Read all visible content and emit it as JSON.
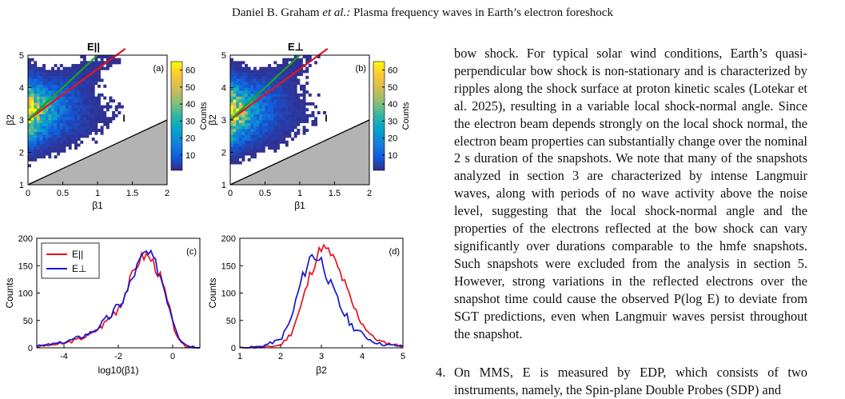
{
  "header": {
    "authors": "Daniel B. Graham",
    "etal": "et al.:",
    "title": "Plasma frequency waves in Earth’s electron foreshock"
  },
  "figure": {
    "colors": {
      "red": "#e8131b",
      "blue": "#1515d6",
      "green": "#1aa51a",
      "shade": "#b3b3b3"
    },
    "panel_a": {
      "label": "(a)",
      "title": "E||",
      "xlabel": "β1",
      "ylabel": "β2",
      "xticks": [
        "0",
        "0.5",
        "1",
        "1.5",
        "2"
      ],
      "yticks": [
        "1",
        "2",
        "3",
        "4",
        "5"
      ],
      "marker": "I"
    },
    "panel_b": {
      "label": "(b)",
      "title": "E⊥",
      "xlabel": "β1",
      "ylabel": "β2",
      "xticks": [
        "0",
        "0.5",
        "1",
        "1.5",
        "2"
      ],
      "yticks": [
        "1",
        "2",
        "3",
        "4",
        "5"
      ],
      "marker": "I"
    },
    "colorbar": {
      "label": "Counts",
      "ticks": [
        "10",
        "20",
        "30",
        "40",
        "50",
        "60"
      ]
    },
    "panel_c": {
      "label": "(c)",
      "xlabel": "log10(β1)",
      "ylabel": "Counts",
      "xticks": [
        "-4",
        "-2",
        "0"
      ],
      "yticks": [
        "0",
        "50",
        "100",
        "150",
        "200"
      ],
      "legend": [
        "E||",
        "E⊥"
      ]
    },
    "panel_d": {
      "label": "(d)",
      "xlabel": "β2",
      "ylabel": "Counts",
      "xticks": [
        "1",
        "2",
        "3",
        "4",
        "5"
      ],
      "yticks": [
        "0",
        "50",
        "100",
        "150",
        "200"
      ]
    }
  },
  "chart_data": [
    {
      "type": "heatmap",
      "panel": "(a)",
      "title": "E||",
      "xlabel": "β1",
      "ylabel": "β2",
      "xlim": [
        0,
        2
      ],
      "ylim": [
        1,
        5
      ],
      "colorbar": {
        "label": "Counts",
        "range": [
          1,
          65
        ]
      },
      "lines": [
        {
          "color": "red",
          "x": [
            0,
            1.4
          ],
          "y": [
            3.0,
            5.2
          ]
        },
        {
          "color": "green",
          "x": [
            0,
            1.0
          ],
          "y": [
            3.0,
            5.0
          ]
        },
        {
          "color": "black",
          "x": [
            0,
            2
          ],
          "y": [
            1.0,
            3.0
          ]
        }
      ]
    },
    {
      "type": "heatmap",
      "panel": "(b)",
      "title": "E⊥",
      "xlabel": "β1",
      "ylabel": "β2",
      "xlim": [
        0,
        2
      ],
      "ylim": [
        1,
        5
      ],
      "colorbar": {
        "label": "Counts",
        "range": [
          1,
          65
        ]
      },
      "lines": [
        {
          "color": "red",
          "x": [
            0,
            1.4
          ],
          "y": [
            3.0,
            5.2
          ]
        },
        {
          "color": "green",
          "x": [
            0,
            1.0
          ],
          "y": [
            3.0,
            5.0
          ]
        },
        {
          "color": "black",
          "x": [
            0,
            2
          ],
          "y": [
            1.0,
            3.0
          ]
        }
      ]
    },
    {
      "type": "line",
      "panel": "(c)",
      "xlabel": "log10(β1)",
      "ylabel": "Counts",
      "xlim": [
        -5,
        1
      ],
      "ylim": [
        0,
        200
      ],
      "x": [
        -5,
        -4.5,
        -4,
        -3.5,
        -3,
        -2.5,
        -2,
        -1.75,
        -1.5,
        -1.25,
        -1,
        -0.75,
        -0.5,
        -0.25,
        0,
        0.25,
        0.5,
        1
      ],
      "series": [
        {
          "name": "E||",
          "color": "red",
          "values": [
            2,
            5,
            8,
            15,
            25,
            45,
            75,
            100,
            130,
            160,
            170,
            160,
            135,
            95,
            45,
            10,
            2,
            0
          ]
        },
        {
          "name": "E⊥",
          "color": "blue",
          "values": [
            3,
            6,
            10,
            18,
            28,
            48,
            75,
            95,
            125,
            155,
            175,
            165,
            140,
            100,
            55,
            18,
            5,
            0
          ]
        }
      ]
    },
    {
      "type": "line",
      "panel": "(d)",
      "xlabel": "β2",
      "ylabel": "Counts",
      "xlim": [
        1,
        5
      ],
      "ylim": [
        0,
        200
      ],
      "x": [
        1,
        1.5,
        2,
        2.25,
        2.5,
        2.75,
        3,
        3.25,
        3.5,
        3.75,
        4,
        4.25,
        4.5,
        5
      ],
      "series": [
        {
          "name": "E||",
          "color": "red",
          "values": [
            0,
            0,
            5,
            25,
            75,
            140,
            185,
            170,
            130,
            80,
            45,
            20,
            10,
            3
          ]
        },
        {
          "name": "E⊥",
          "color": "blue",
          "values": [
            0,
            2,
            15,
            50,
            120,
            170,
            160,
            110,
            70,
            40,
            25,
            12,
            6,
            3
          ]
        }
      ]
    }
  ],
  "body": {
    "paragraph": "bow shock. For typical solar wind conditions, Earth’s quasi-perpendicular bow shock is non-stationary and is characterized by ripples along the shock surface at proton kinetic scales (Lotekar et al. 2025), resulting in a variable local shock-normal angle. Since the electron beam depends strongly on the local shock normal, the electron beam properties can substantially change over the nominal 2 s duration of the snapshots. We note that many of the snapshots analyzed in section 3 are characterized by intense Langmuir waves, along with periods of no wave activity above the noise level, suggesting that the local shock-normal angle and the properties of the electrons reflected at the bow shock can vary significantly over durations comparable to the hmfe snapshots. Such snapshots were excluded from the analysis in section 5. However, strong variations in the reflected electrons over the snapshot time could cause the observed P(log E) to deviate from SGT predictions, even when Langmuir waves persist throughout the snapshot.",
    "item_number": "4.",
    "item_text": "On MMS, E is measured by EDP, which consists of two instruments, namely, the Spin-plane Double Probes (SDP) and"
  }
}
